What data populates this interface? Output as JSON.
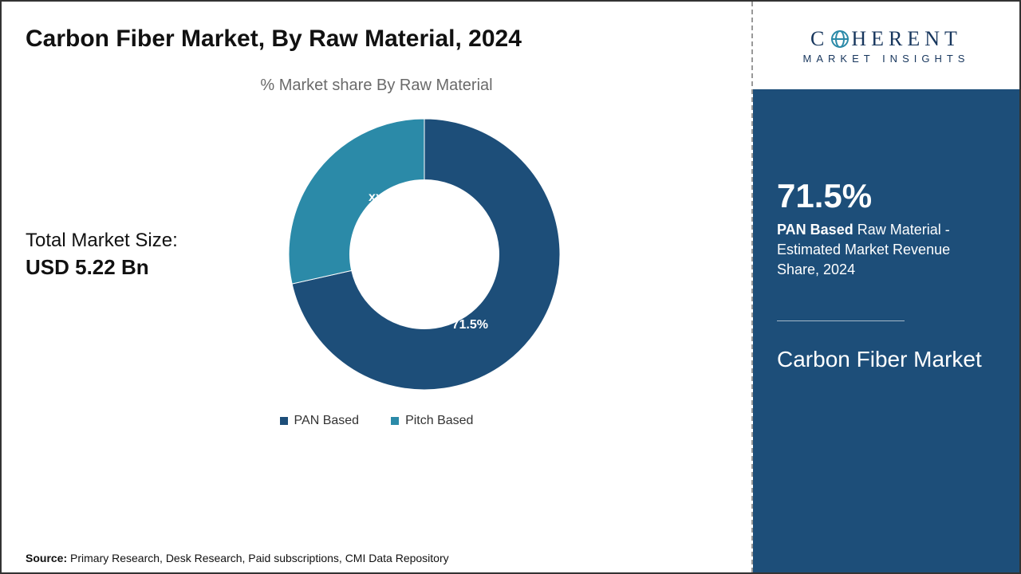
{
  "title": "Carbon Fiber Market, By Raw Material, 2024",
  "chart": {
    "type": "donut",
    "title": "% Market share By Raw Material",
    "inner_radius_ratio": 0.55,
    "outer_radius": 170,
    "background_color": "#ffffff",
    "start_angle_deg": 0,
    "slices": [
      {
        "name": "PAN Based",
        "value": 71.5,
        "label": "71.5%",
        "color": "#1d4e79"
      },
      {
        "name": "Pitch Based",
        "value": 28.5,
        "label": "xx.x%",
        "color": "#2b8aa8"
      }
    ],
    "label_fontsize": 16,
    "label_color": "#ffffff"
  },
  "market_size": {
    "label": "Total Market Size:",
    "value": "USD 5.22 Bn"
  },
  "legend": {
    "items": [
      {
        "label": "PAN Based",
        "color": "#1d4e79"
      },
      {
        "label": "Pitch Based",
        "color": "#2b8aa8"
      }
    ],
    "fontsize": 16
  },
  "source": {
    "prefix": "Source:",
    "text": " Primary Research, Desk Research, Paid subscriptions, CMI Data Repository"
  },
  "logo": {
    "main_pre": "C",
    "main_post": "HERENT",
    "sub": "MARKET INSIGHTS",
    "color": "#17365d",
    "accent": "#2b8aa8"
  },
  "side_panel": {
    "background_color": "#1d4e79",
    "stat_value": "71.5%",
    "stat_bold": "PAN Based",
    "stat_rest": " Raw Material - Estimated Market Revenue Share, 2024",
    "market_name": "Carbon Fiber Market"
  }
}
